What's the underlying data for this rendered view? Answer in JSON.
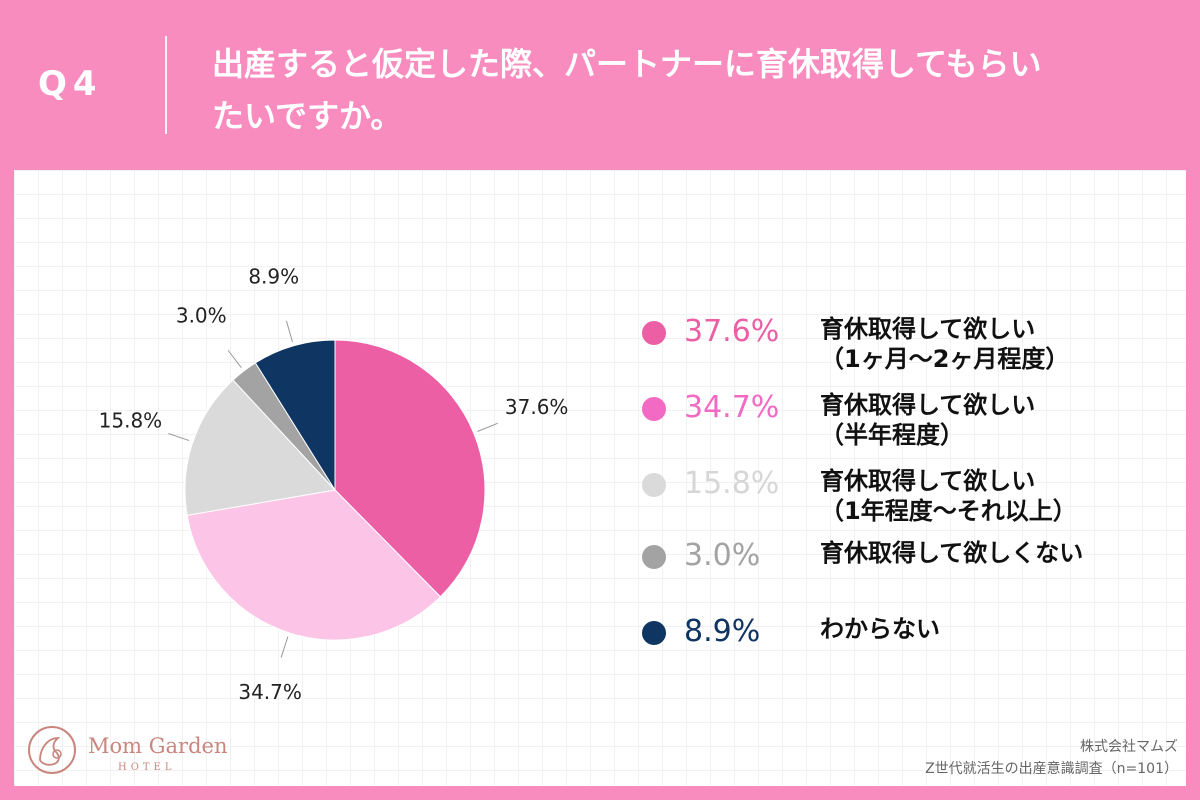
{
  "header": {
    "q_label": "Q4",
    "question_line1": "出産すると仮定した際、パートナーに育休取得してもらい",
    "question_line2": "たいですか。"
  },
  "chart_data": {
    "type": "pie",
    "categories": [
      "育休取得して欲しい（1ヶ月〜2ヶ月程度）",
      "育休取得して欲しい（半年程度）",
      "育休取得して欲しい（1年程度〜それ以上）",
      "育休取得して欲しくない",
      "わからない"
    ],
    "values": [
      37.6,
      34.7,
      15.8,
      3.0,
      8.9
    ],
    "labels": [
      "37.6%",
      "34.7%",
      "15.8%",
      "3.0%",
      "8.9%"
    ],
    "colors": [
      "#ec5fa4",
      "#fcc4e6",
      "#dadada",
      "#a3a3a3",
      "#0f3563"
    ],
    "legend_placement": "right"
  },
  "legend": [
    {
      "pct": "37.6%",
      "line1": "育休取得して欲しい",
      "line2": "（1ヶ月〜2ヶ月程度）",
      "pct_color": "#ec5fa4",
      "dot_color": "#ec5fa4"
    },
    {
      "pct": "34.7%",
      "line1": "育休取得して欲しい",
      "line2": "（半年程度）",
      "pct_color": "#f26ac4",
      "dot_color": "#f26ac4"
    },
    {
      "pct": "15.8%",
      "line1": "育休取得して欲しい",
      "line2": "（1年程度〜それ以上）",
      "pct_color": "#d6d6d6",
      "dot_color": "#dadada"
    },
    {
      "pct": "3.0%",
      "line1": "育休取得して欲しくない",
      "line2": "",
      "pct_color": "#a3a3a3",
      "dot_color": "#a3a3a3"
    },
    {
      "pct": "8.9%",
      "line1": "わからない",
      "line2": "",
      "pct_color": "#0f3563",
      "dot_color": "#0f3563"
    }
  ],
  "logo": {
    "name": "Mom Garden",
    "sub": "HOTEL",
    "icon": "mother-child-circle-icon"
  },
  "source": {
    "company": "株式会社マムズ",
    "survey": "Z世代就活生の出産意識調査（n=101）"
  }
}
